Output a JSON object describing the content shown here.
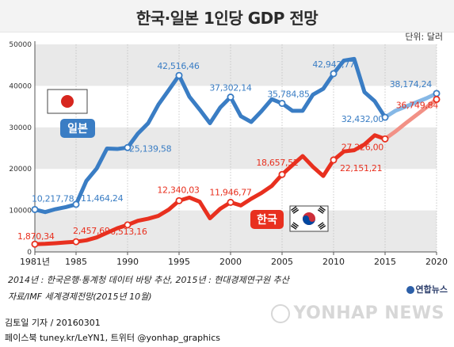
{
  "title": "한국·일본 1인당 GDP 전망",
  "unit_label": "단위: 달러",
  "notes": {
    "line1": "2014년 : 한국은행·통계청 데이터 바탕 추산, 2015년 : 현대경제연구원 추산",
    "line2": "자료/IMF 세계경제전망(2015년 10월)"
  },
  "credits": {
    "reporter": "김토일 기자 / 20160301",
    "social": "페이스북 tuney.kr/LeYN1, 트위터 @yonhap_graphics"
  },
  "logo_text": "연합뉴스",
  "watermark_text": "YONHAP NEWS",
  "colors": {
    "japan": "#3a7dc4",
    "japan_forecast": "#86b8e6",
    "korea": "#e8301f",
    "korea_forecast": "#f29186",
    "band": "#e9e9e9"
  },
  "chart_data": {
    "type": "line",
    "x_ticks": [
      "1981년",
      "1985",
      "1990",
      "1995",
      "2000",
      "2005",
      "2010",
      "2015",
      "2020"
    ],
    "y_ticks": [
      "0",
      "10000",
      "20000",
      "30000",
      "40000",
      "50000"
    ],
    "ylim": [
      0,
      50000
    ],
    "xlim": [
      1981,
      2020
    ],
    "grid": "horizontal bands",
    "series": [
      {
        "name": "일본",
        "color_key": "japan",
        "forecast_from": 2015,
        "points": [
          [
            1981,
            10217.78
          ],
          [
            1982,
            9600
          ],
          [
            1983,
            10300
          ],
          [
            1984,
            10800
          ],
          [
            1985,
            11464.24
          ],
          [
            1986,
            17100
          ],
          [
            1987,
            20100
          ],
          [
            1988,
            24900
          ],
          [
            1989,
            24800
          ],
          [
            1990,
            25139.58
          ],
          [
            1991,
            28500
          ],
          [
            1992,
            31000
          ],
          [
            1993,
            35500
          ],
          [
            1994,
            39000
          ],
          [
            1995,
            42516.46
          ],
          [
            1996,
            37400
          ],
          [
            1997,
            34300
          ],
          [
            1998,
            31000
          ],
          [
            1999,
            34800
          ],
          [
            2000,
            37302.14
          ],
          [
            2001,
            32700
          ],
          [
            2002,
            31300
          ],
          [
            2003,
            33900
          ],
          [
            2004,
            36800
          ],
          [
            2005,
            35784.85
          ],
          [
            2006,
            34000
          ],
          [
            2007,
            34000
          ],
          [
            2008,
            37900
          ],
          [
            2009,
            39300
          ],
          [
            2010,
            42942.77
          ],
          [
            2011,
            46100
          ],
          [
            2012,
            46500
          ],
          [
            2013,
            38500
          ],
          [
            2014,
            36300
          ],
          [
            2015,
            32432.0
          ],
          [
            2016,
            34000
          ],
          [
            2017,
            35000
          ],
          [
            2018,
            36000
          ],
          [
            2019,
            37000
          ],
          [
            2020,
            38174.24
          ]
        ],
        "labels": [
          {
            "year": 1981,
            "text": "10,217,78"
          },
          {
            "year": 1985,
            "text": "11,464,24"
          },
          {
            "year": 1990,
            "text": "25,139,58"
          },
          {
            "year": 1995,
            "text": "42,516,46"
          },
          {
            "year": 2000,
            "text": "37,302,14"
          },
          {
            "year": 2005,
            "text": "35,784,85"
          },
          {
            "year": 2010,
            "text": "42,942,77"
          },
          {
            "year": 2015,
            "text": "32,432,00"
          },
          {
            "year": 2020,
            "text": "38,174,24"
          }
        ]
      },
      {
        "name": "한국",
        "color_key": "korea",
        "forecast_from": 2015,
        "points": [
          [
            1981,
            1870.34
          ],
          [
            1982,
            1950
          ],
          [
            1983,
            2100
          ],
          [
            1984,
            2300
          ],
          [
            1985,
            2457.69
          ],
          [
            1986,
            2800
          ],
          [
            1987,
            3500
          ],
          [
            1988,
            4600
          ],
          [
            1989,
            5700
          ],
          [
            1990,
            6513.16
          ],
          [
            1991,
            7500
          ],
          [
            1992,
            8000
          ],
          [
            1993,
            8700
          ],
          [
            1994,
            10200
          ],
          [
            1995,
            12340.03
          ],
          [
            1996,
            13100
          ],
          [
            1997,
            12100
          ],
          [
            1998,
            8100
          ],
          [
            1999,
            10400
          ],
          [
            2000,
            11946.77
          ],
          [
            2001,
            11200
          ],
          [
            2002,
            12800
          ],
          [
            2003,
            14200
          ],
          [
            2004,
            15900
          ],
          [
            2005,
            18657.52
          ],
          [
            2006,
            20900
          ],
          [
            2007,
            23100
          ],
          [
            2008,
            20500
          ],
          [
            2009,
            18300
          ],
          [
            2010,
            22151.21
          ],
          [
            2011,
            24200
          ],
          [
            2012,
            24500
          ],
          [
            2013,
            25900
          ],
          [
            2014,
            28100
          ],
          [
            2015,
            27226.0
          ],
          [
            2016,
            29000
          ],
          [
            2017,
            31000
          ],
          [
            2018,
            32900
          ],
          [
            2019,
            34800
          ],
          [
            2020,
            36749.84
          ]
        ],
        "labels": [
          {
            "year": 1981,
            "text": "1,870,34"
          },
          {
            "year": 1985,
            "text": "2,457,69"
          },
          {
            "year": 1990,
            "text": "6,513,16"
          },
          {
            "year": 1995,
            "text": "12,340,03"
          },
          {
            "year": 2000,
            "text": "11,946,77"
          },
          {
            "year": 2005,
            "text": "18,657,52"
          },
          {
            "year": 2010,
            "text": "22,151,21"
          },
          {
            "year": 2015,
            "text": "27,226,00"
          },
          {
            "year": 2020,
            "text": "36,749,84"
          }
        ]
      }
    ]
  }
}
